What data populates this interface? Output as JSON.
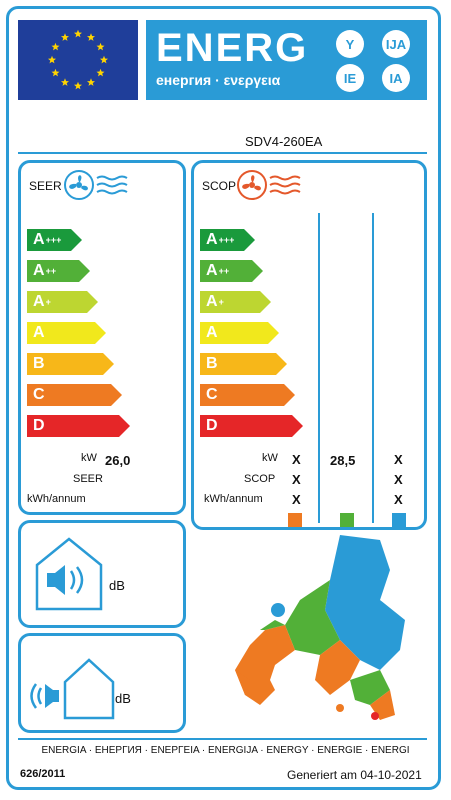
{
  "header": {
    "energ": "ENERG",
    "subtitle": "енергия · ενεργεια",
    "lang_codes": [
      "Y",
      "IJA",
      "IE",
      "IA"
    ]
  },
  "model": "SDV4-260EA",
  "cooling": {
    "title": "SEER",
    "classes": [
      {
        "letter": "A",
        "sup": "+++",
        "color": "#1a9a3c"
      },
      {
        "letter": "A",
        "sup": "++",
        "color": "#52b038"
      },
      {
        "letter": "A",
        "sup": "+",
        "color": "#bdd631"
      },
      {
        "letter": "A",
        "sup": "",
        "color": "#f1e81c"
      },
      {
        "letter": "B",
        "sup": "",
        "color": "#f7b719"
      },
      {
        "letter": "C",
        "sup": "",
        "color": "#ee7a22"
      },
      {
        "letter": "D",
        "sup": "",
        "color": "#e52628"
      }
    ],
    "kw_label": "kW",
    "kw_value": "26,0",
    "seer_label": "SEER",
    "kwh_label": "kWh/annum"
  },
  "heating": {
    "title": "SCOP",
    "kw_label": "kW",
    "scop_label": "SCOP",
    "kwh_label": "kWh/annum",
    "col1": {
      "kw": "X",
      "scop": "X",
      "kwh": "X",
      "color": "#ee7a22"
    },
    "col2": {
      "kw": "28,5",
      "color": "#52b038"
    },
    "col3": {
      "kw": "X",
      "scop": "X",
      "kwh": "X",
      "color": "#2a9bd6"
    }
  },
  "noise": {
    "indoor_unit": "dB",
    "outdoor_unit": "dB"
  },
  "footer": {
    "languages": "ENERGIA · ЕНЕРГИЯ · ΕΝΕΡΓΕΙΑ · ENERGIJA · ENERGY · ENERGIE · ENERGI",
    "regulation": "626/2011",
    "generated": "Generiert am 04-10-2021"
  }
}
